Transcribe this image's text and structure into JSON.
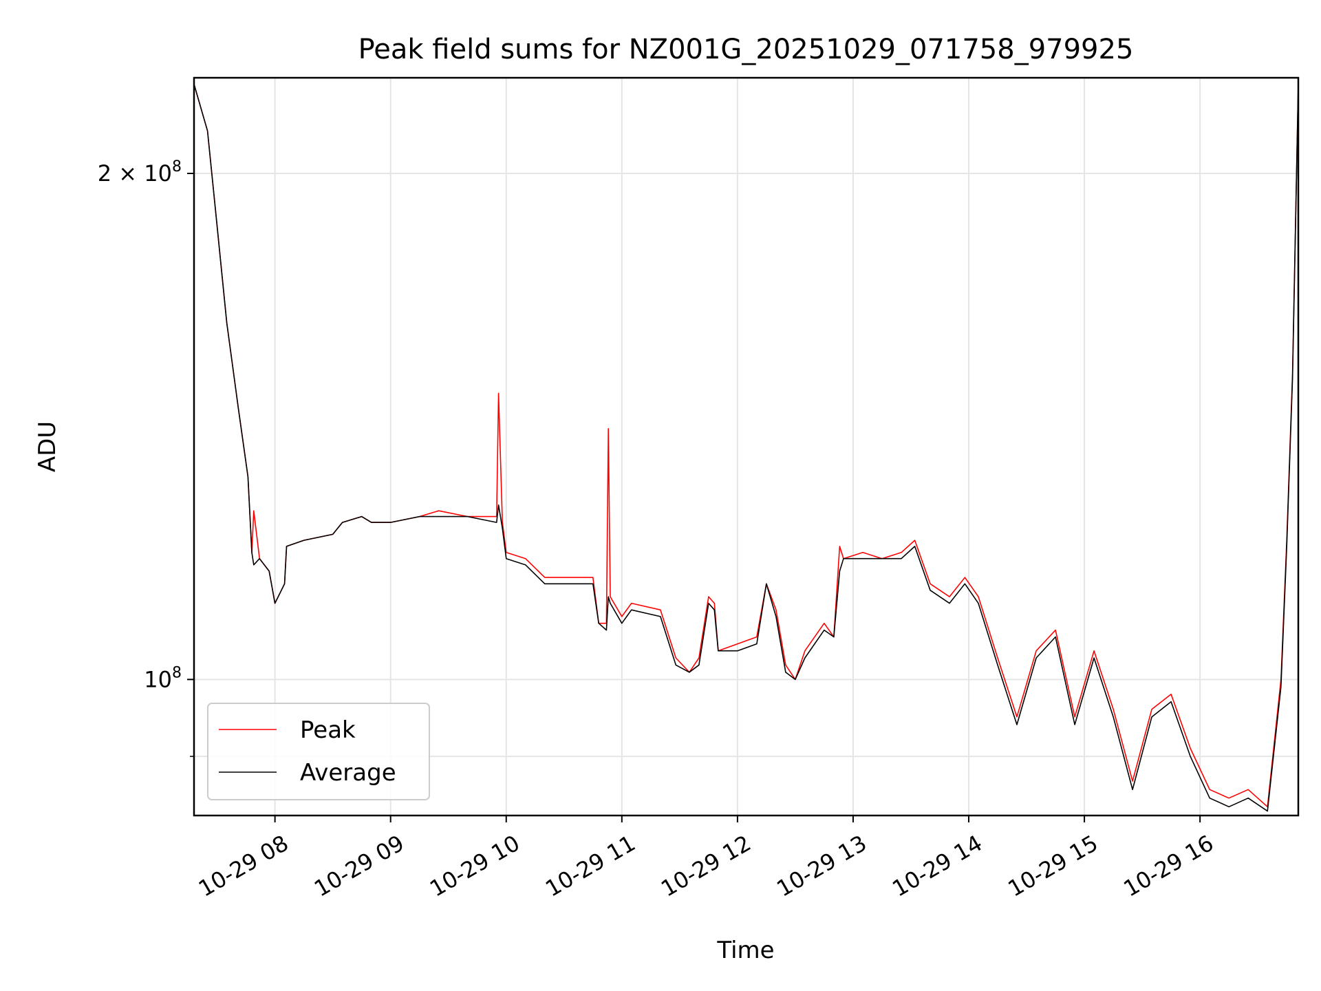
{
  "chart_data": {
    "type": "line",
    "title": "Peak field sums for NZ001G_20251029_071758_979925",
    "xlabel": "Time",
    "ylabel": "ADU",
    "yscale": "log",
    "xlim": [
      "2025-10-29 07:18",
      "2025-10-29 16:51"
    ],
    "ylim": [
      83000000,
      228000000
    ],
    "grid": true,
    "legend_position": "lower-left",
    "x_ticks": [
      {
        "x": "2025-10-29 08:00",
        "label": "10-29 08"
      },
      {
        "x": "2025-10-29 09:00",
        "label": "10-29 09"
      },
      {
        "x": "2025-10-29 10:00",
        "label": "10-29 10"
      },
      {
        "x": "2025-10-29 11:00",
        "label": "10-29 11"
      },
      {
        "x": "2025-10-29 12:00",
        "label": "10-29 12"
      },
      {
        "x": "2025-10-29 13:00",
        "label": "10-29 13"
      },
      {
        "x": "2025-10-29 14:00",
        "label": "10-29 14"
      },
      {
        "x": "2025-10-29 15:00",
        "label": "10-29 15"
      },
      {
        "x": "2025-10-29 16:00",
        "label": "10-29 16"
      }
    ],
    "y_ticks": [
      {
        "value": 200000000,
        "mantissa": "2 × 10",
        "exponent": "8"
      },
      {
        "value": 100000000,
        "mantissa": "10",
        "exponent": "8"
      }
    ],
    "y_minor_ticks": [
      90000000
    ],
    "series": [
      {
        "name": "Peak",
        "color": "#ff0000",
        "points": [
          [
            "2025-10-29 07:18",
            226000000
          ],
          [
            "2025-10-29 07:25",
            212000000
          ],
          [
            "2025-10-29 07:30",
            186000000
          ],
          [
            "2025-10-29 07:35",
            163000000
          ],
          [
            "2025-10-29 07:41",
            145000000
          ],
          [
            "2025-10-29 07:46",
            132000000
          ],
          [
            "2025-10-29 07:48",
            119000000
          ],
          [
            "2025-10-29 07:49",
            126000000
          ],
          [
            "2025-10-29 07:52",
            118000000
          ],
          [
            "2025-10-29 07:57",
            116000000
          ],
          [
            "2025-10-29 08:00",
            111000000
          ],
          [
            "2025-10-29 08:05",
            114000000
          ],
          [
            "2025-10-29 08:06",
            120000000
          ],
          [
            "2025-10-29 08:15",
            121000000
          ],
          [
            "2025-10-29 08:30",
            122000000
          ],
          [
            "2025-10-29 08:35",
            124000000
          ],
          [
            "2025-10-29 08:45",
            125000000
          ],
          [
            "2025-10-29 08:50",
            124000000
          ],
          [
            "2025-10-29 09:00",
            124000000
          ],
          [
            "2025-10-29 09:15",
            125000000
          ],
          [
            "2025-10-29 09:25",
            126000000
          ],
          [
            "2025-10-29 09:40",
            125000000
          ],
          [
            "2025-10-29 09:55",
            125000000
          ],
          [
            "2025-10-29 09:56",
            148000000
          ],
          [
            "2025-10-29 09:58",
            124000000
          ],
          [
            "2025-10-29 10:00",
            119000000
          ],
          [
            "2025-10-29 10:10",
            118000000
          ],
          [
            "2025-10-29 10:20",
            115000000
          ],
          [
            "2025-10-29 10:35",
            115000000
          ],
          [
            "2025-10-29 10:45",
            115000000
          ],
          [
            "2025-10-29 10:48",
            108000000
          ],
          [
            "2025-10-29 10:52",
            108000000
          ],
          [
            "2025-10-29 10:53",
            141000000
          ],
          [
            "2025-10-29 10:54",
            112000000
          ],
          [
            "2025-10-29 11:00",
            109000000
          ],
          [
            "2025-10-29 11:05",
            111000000
          ],
          [
            "2025-10-29 11:20",
            110000000
          ],
          [
            "2025-10-29 11:28",
            103000000
          ],
          [
            "2025-10-29 11:35",
            101000000
          ],
          [
            "2025-10-29 11:40",
            103000000
          ],
          [
            "2025-10-29 11:45",
            112000000
          ],
          [
            "2025-10-29 11:48",
            111000000
          ],
          [
            "2025-10-29 11:50",
            104000000
          ],
          [
            "2025-10-29 12:00",
            105000000
          ],
          [
            "2025-10-29 12:10",
            106000000
          ],
          [
            "2025-10-29 12:15",
            114000000
          ],
          [
            "2025-10-29 12:20",
            110000000
          ],
          [
            "2025-10-29 12:25",
            102000000
          ],
          [
            "2025-10-29 12:30",
            100000000
          ],
          [
            "2025-10-29 12:35",
            104000000
          ],
          [
            "2025-10-29 12:45",
            108000000
          ],
          [
            "2025-10-29 12:50",
            106000000
          ],
          [
            "2025-10-29 12:53",
            120000000
          ],
          [
            "2025-10-29 12:55",
            118000000
          ],
          [
            "2025-10-29 13:05",
            119000000
          ],
          [
            "2025-10-29 13:15",
            118000000
          ],
          [
            "2025-10-29 13:25",
            119000000
          ],
          [
            "2025-10-29 13:32",
            121000000
          ],
          [
            "2025-10-29 13:40",
            114000000
          ],
          [
            "2025-10-29 13:50",
            112000000
          ],
          [
            "2025-10-29 13:58",
            115000000
          ],
          [
            "2025-10-29 14:05",
            112000000
          ],
          [
            "2025-10-29 14:15",
            103000000
          ],
          [
            "2025-10-29 14:25",
            95000000
          ],
          [
            "2025-10-29 14:35",
            104000000
          ],
          [
            "2025-10-29 14:45",
            107000000
          ],
          [
            "2025-10-29 14:55",
            95000000
          ],
          [
            "2025-10-29 15:05",
            104000000
          ],
          [
            "2025-10-29 15:15",
            96000000
          ],
          [
            "2025-10-29 15:25",
            87000000
          ],
          [
            "2025-10-29 15:35",
            96000000
          ],
          [
            "2025-10-29 15:45",
            98000000
          ],
          [
            "2025-10-29 15:55",
            91000000
          ],
          [
            "2025-10-29 16:05",
            86000000
          ],
          [
            "2025-10-29 16:15",
            85000000
          ],
          [
            "2025-10-29 16:25",
            86000000
          ],
          [
            "2025-10-29 16:35",
            84000000
          ],
          [
            "2025-10-29 16:42",
            100000000
          ],
          [
            "2025-10-29 16:45",
            121000000
          ],
          [
            "2025-10-29 16:48",
            152000000
          ],
          [
            "2025-10-29 16:51",
            226000000
          ]
        ]
      },
      {
        "name": "Average",
        "color": "#000000",
        "points": [
          [
            "2025-10-29 07:18",
            226000000
          ],
          [
            "2025-10-29 07:25",
            212000000
          ],
          [
            "2025-10-29 07:30",
            186000000
          ],
          [
            "2025-10-29 07:35",
            163000000
          ],
          [
            "2025-10-29 07:41",
            145000000
          ],
          [
            "2025-10-29 07:46",
            132000000
          ],
          [
            "2025-10-29 07:48",
            119000000
          ],
          [
            "2025-10-29 07:49",
            117000000
          ],
          [
            "2025-10-29 07:52",
            118000000
          ],
          [
            "2025-10-29 07:57",
            116000000
          ],
          [
            "2025-10-29 08:00",
            111000000
          ],
          [
            "2025-10-29 08:05",
            114000000
          ],
          [
            "2025-10-29 08:06",
            120000000
          ],
          [
            "2025-10-29 08:15",
            121000000
          ],
          [
            "2025-10-29 08:30",
            122000000
          ],
          [
            "2025-10-29 08:35",
            124000000
          ],
          [
            "2025-10-29 08:45",
            125000000
          ],
          [
            "2025-10-29 08:50",
            124000000
          ],
          [
            "2025-10-29 09:00",
            124000000
          ],
          [
            "2025-10-29 09:15",
            125000000
          ],
          [
            "2025-10-29 09:25",
            125000000
          ],
          [
            "2025-10-29 09:40",
            125000000
          ],
          [
            "2025-10-29 09:55",
            124000000
          ],
          [
            "2025-10-29 09:56",
            127000000
          ],
          [
            "2025-10-29 09:58",
            123000000
          ],
          [
            "2025-10-29 10:00",
            118000000
          ],
          [
            "2025-10-29 10:10",
            117000000
          ],
          [
            "2025-10-29 10:20",
            114000000
          ],
          [
            "2025-10-29 10:35",
            114000000
          ],
          [
            "2025-10-29 10:45",
            114000000
          ],
          [
            "2025-10-29 10:48",
            108000000
          ],
          [
            "2025-10-29 10:52",
            107000000
          ],
          [
            "2025-10-29 10:53",
            112000000
          ],
          [
            "2025-10-29 10:54",
            111000000
          ],
          [
            "2025-10-29 11:00",
            108000000
          ],
          [
            "2025-10-29 11:05",
            110000000
          ],
          [
            "2025-10-29 11:20",
            109000000
          ],
          [
            "2025-10-29 11:28",
            102000000
          ],
          [
            "2025-10-29 11:35",
            101000000
          ],
          [
            "2025-10-29 11:40",
            102000000
          ],
          [
            "2025-10-29 11:45",
            111000000
          ],
          [
            "2025-10-29 11:48",
            110000000
          ],
          [
            "2025-10-29 11:50",
            104000000
          ],
          [
            "2025-10-29 12:00",
            104000000
          ],
          [
            "2025-10-29 12:10",
            105000000
          ],
          [
            "2025-10-29 12:15",
            114000000
          ],
          [
            "2025-10-29 12:20",
            109000000
          ],
          [
            "2025-10-29 12:25",
            101000000
          ],
          [
            "2025-10-29 12:30",
            100000000
          ],
          [
            "2025-10-29 12:35",
            103000000
          ],
          [
            "2025-10-29 12:45",
            107000000
          ],
          [
            "2025-10-29 12:50",
            106000000
          ],
          [
            "2025-10-29 12:53",
            116000000
          ],
          [
            "2025-10-29 12:55",
            118000000
          ],
          [
            "2025-10-29 13:05",
            118000000
          ],
          [
            "2025-10-29 13:15",
            118000000
          ],
          [
            "2025-10-29 13:25",
            118000000
          ],
          [
            "2025-10-29 13:32",
            120000000
          ],
          [
            "2025-10-29 13:40",
            113000000
          ],
          [
            "2025-10-29 13:50",
            111000000
          ],
          [
            "2025-10-29 13:58",
            114000000
          ],
          [
            "2025-10-29 14:05",
            111000000
          ],
          [
            "2025-10-29 14:15",
            102000000
          ],
          [
            "2025-10-29 14:25",
            94000000
          ],
          [
            "2025-10-29 14:35",
            103000000
          ],
          [
            "2025-10-29 14:45",
            106000000
          ],
          [
            "2025-10-29 14:55",
            94000000
          ],
          [
            "2025-10-29 15:05",
            103000000
          ],
          [
            "2025-10-29 15:15",
            95000000
          ],
          [
            "2025-10-29 15:25",
            86000000
          ],
          [
            "2025-10-29 15:35",
            95000000
          ],
          [
            "2025-10-29 15:45",
            97000000
          ],
          [
            "2025-10-29 15:55",
            90000000
          ],
          [
            "2025-10-29 16:05",
            85000000
          ],
          [
            "2025-10-29 16:15",
            84000000
          ],
          [
            "2025-10-29 16:25",
            85000000
          ],
          [
            "2025-10-29 16:35",
            83500000
          ],
          [
            "2025-10-29 16:42",
            99000000
          ],
          [
            "2025-10-29 16:45",
            120000000
          ],
          [
            "2025-10-29 16:48",
            151000000
          ],
          [
            "2025-10-29 16:51",
            226000000
          ]
        ]
      }
    ]
  }
}
